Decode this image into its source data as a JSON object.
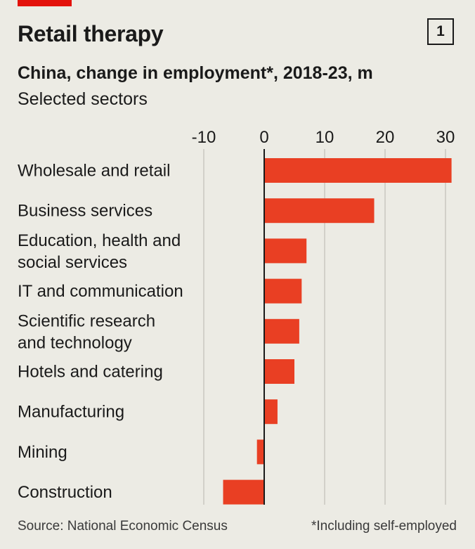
{
  "header": {
    "title": "Retail therapy",
    "chart_number": "1",
    "subtitle": "China, change in employment*, 2018-23, m",
    "subtitle2": "Selected sectors"
  },
  "footer": {
    "source": "Source: National Economic Census",
    "note": "*Including self-employed"
  },
  "colors": {
    "bar": "#e93f23",
    "accent": "#e3120b",
    "gridline": "#c9c7c0",
    "zero_line": "#1a1a1a",
    "background": "#ecebe4"
  },
  "chart_data": {
    "type": "bar",
    "orientation": "horizontal",
    "title": "China, change in employment*, 2018-23, m",
    "subtitle": "Selected sectors",
    "categories": [
      [
        "Wholesale and retail"
      ],
      [
        "Business services"
      ],
      [
        "Education, health and",
        "social services"
      ],
      [
        "IT and communication"
      ],
      [
        "Scientific research",
        "and technology"
      ],
      [
        "Hotels and catering"
      ],
      [
        "Manufacturing"
      ],
      [
        "Mining"
      ],
      [
        "Construction"
      ]
    ],
    "values": [
      31,
      18.2,
      7,
      6.2,
      5.8,
      5,
      2.2,
      -1.2,
      -6.8
    ],
    "xlim": [
      -10,
      31
    ],
    "ticks": [
      -10,
      0,
      10,
      20,
      30
    ],
    "tick_labels": [
      "-10",
      "0",
      "10",
      "20",
      "30"
    ],
    "grid": true,
    "legend": "none"
  }
}
